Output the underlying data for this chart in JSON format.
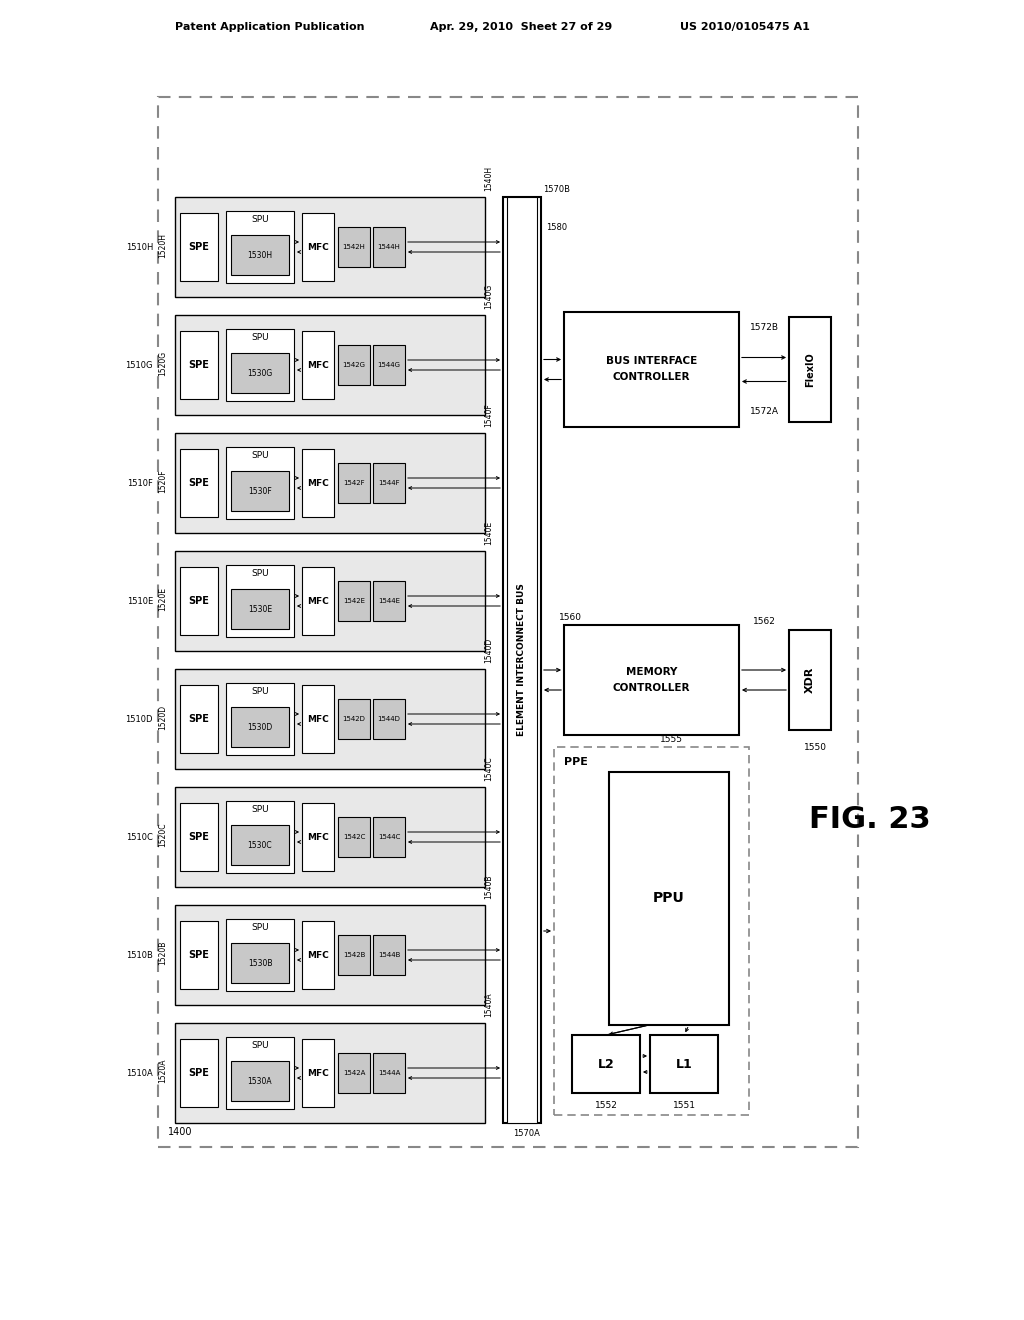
{
  "bg_color": "#ffffff",
  "header_left": "Patent Application Publication",
  "header_mid": "Apr. 29, 2010  Sheet 27 of 29",
  "header_right": "US 2010/0105475 A1",
  "fig_label": "FIG. 23",
  "outer_box_label": "1400",
  "rows": [
    "A",
    "B",
    "C",
    "D",
    "E",
    "F",
    "G",
    "H"
  ],
  "row_labels_1510": [
    "1510A",
    "1510B",
    "1510C",
    "1510D",
    "1510E",
    "1510F",
    "1510G",
    "1510H"
  ],
  "row_labels_1520": [
    "1520A",
    "1520B",
    "1520C",
    "1520D",
    "1520E",
    "1520F",
    "1520G",
    "1520H"
  ],
  "row_labels_1530": [
    "1530A",
    "1530B",
    "1530C",
    "1530D",
    "1530E",
    "1530F",
    "1530G",
    "1530H"
  ],
  "row_labels_1540": [
    "1540A",
    "1540B",
    "1540C",
    "1540D",
    "1540E",
    "1540F",
    "1540G",
    "1540H"
  ],
  "row_labels_1542": [
    "1542A",
    "1542B",
    "1542C",
    "1542D",
    "1542E",
    "1542F",
    "1542G",
    "1542H"
  ],
  "row_labels_1544": [
    "1544A",
    "1544B",
    "1544C",
    "1544D",
    "1544E",
    "1544F",
    "1544G",
    "1544H"
  ],
  "bus_label": "ELEMENT INTERCONNECT BUS",
  "bus_label_1580": "1580",
  "bus_top_label": "1570B",
  "bus_bot_label": "1570A",
  "memory_controller_label1": "MEMORY",
  "memory_controller_label2": "CONTROLLER",
  "memory_label_1560": "1560",
  "bus_interface_label1": "BUS INTERFACE CONTROLLER",
  "ppe_label": "PPE",
  "ppu_label": "PPU",
  "l2_label": "L2",
  "l1_label": "L1",
  "xdr_label": "XDR",
  "flexio_label": "FlexIO",
  "label_1550": "1550",
  "label_1555": "1555",
  "label_1551": "1551",
  "label_1552": "1552",
  "label_1560b": "1560",
  "label_1562": "1562",
  "label_1572a": "1572A",
  "label_1572b": "1572B",
  "gray_fill": "#c8c8c8",
  "light_gray_row": "#e8e8e8",
  "box_outline": "#000000",
  "text_color": "#000000",
  "dashed_color": "#888888"
}
